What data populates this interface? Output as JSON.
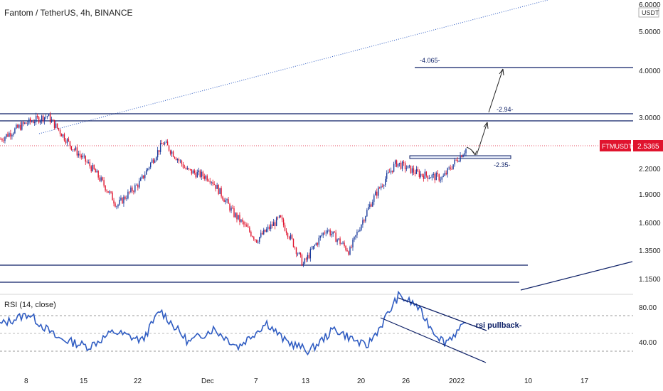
{
  "header": {
    "title": "Fantom / TetherUS, 4h, BINANCE"
  },
  "colors": {
    "up": "#1a3b9c",
    "down": "#e0142e",
    "line": "#0c1f66",
    "rsi": "#2f5cc2",
    "tag": "#e0142e",
    "axis_text": "#222222"
  },
  "chart_data": [
    {
      "type": "candlestick",
      "title": "Fantom / TetherUS, 4h, BINANCE",
      "price_axis": {
        "unit_label": "USDT",
        "ticks": [
          "6.0000",
          "5.0000",
          "4.0000",
          "3.0000",
          "2.2000",
          "1.9000",
          "1.6000",
          "1.3500",
          "1.1500"
        ],
        "scale": "log"
      },
      "last_price": {
        "symbol": "FTMUSDT",
        "value": "2.5365"
      },
      "x_ticks": [
        "8",
        "15",
        "22",
        "Dec",
        "7",
        "13",
        "20",
        "26",
        "2022",
        "10",
        "17"
      ],
      "close_path": [
        [
          "8",
          2.65
        ],
        [
          "8",
          2.9
        ],
        [
          "8",
          3.05
        ],
        [
          "15",
          2.55
        ],
        [
          "15",
          2.2
        ],
        [
          "15",
          1.78
        ],
        [
          "22",
          2.05
        ],
        [
          "22",
          2.6
        ],
        [
          "22",
          2.2
        ],
        [
          "Dec",
          2.1
        ],
        [
          "Dec",
          1.7
        ],
        [
          "7",
          1.45
        ],
        [
          "7",
          1.65
        ],
        [
          "13",
          1.25
        ],
        [
          "13",
          1.55
        ],
        [
          "20",
          1.35
        ],
        [
          "20",
          1.85
        ],
        [
          "26",
          2.3
        ],
        [
          "26",
          2.15
        ],
        [
          "2022",
          2.1
        ],
        [
          "2022",
          2.5
        ]
      ],
      "annotations": [
        {
          "label": "-4.065-",
          "price": 4.065
        },
        {
          "label": "-2.94-",
          "price": 2.94
        },
        {
          "label": "-2.35-",
          "price": 2.35
        }
      ],
      "horizontal_levels": [
        3.05,
        2.95,
        1.235,
        1.14
      ]
    },
    {
      "type": "line",
      "title": "RSI (14, close)",
      "ticks": [
        "80.00",
        "40.00"
      ],
      "ylim": [
        20,
        100
      ],
      "bands": [
        70,
        50,
        30
      ],
      "annotation": "-rsi pullback-"
    }
  ]
}
